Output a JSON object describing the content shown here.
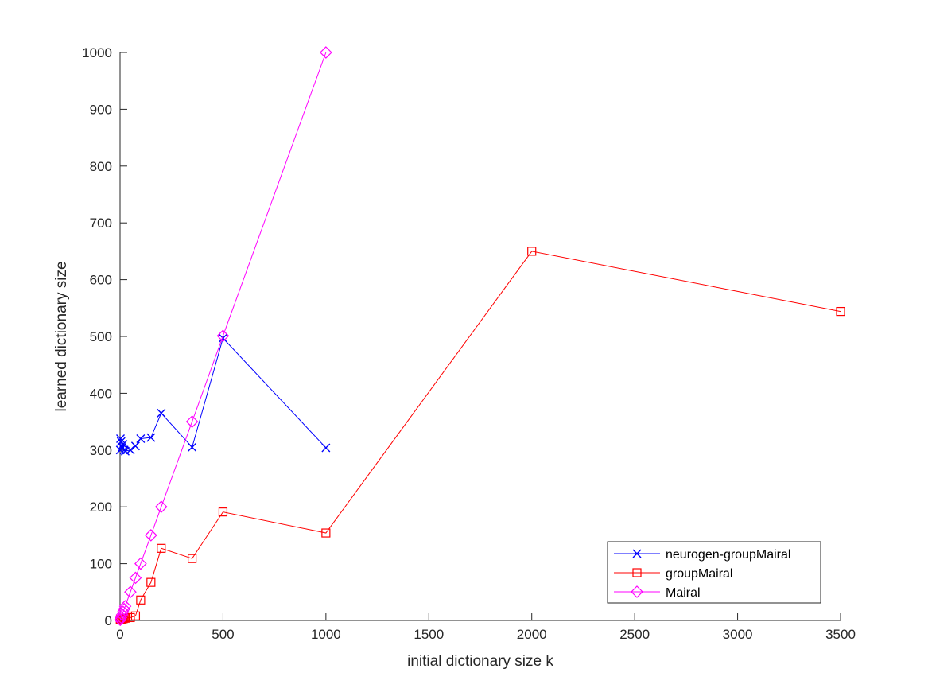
{
  "chart_data": {
    "type": "line",
    "title": "",
    "xlabel": "initial dictionary size k",
    "ylabel": "learned dictionary size",
    "xlim": [
      0,
      3500
    ],
    "ylim": [
      0,
      1000
    ],
    "xticks": [
      0,
      500,
      1000,
      1500,
      2000,
      2500,
      3000,
      3500
    ],
    "yticks": [
      0,
      100,
      200,
      300,
      400,
      500,
      600,
      700,
      800,
      900,
      1000
    ],
    "grid": false,
    "legend_position": "bottom-right",
    "series": [
      {
        "name": "neurogen-groupMairal",
        "color": "#0000ff",
        "marker": "x",
        "x": [
          1,
          2,
          5,
          10,
          15,
          20,
          25,
          50,
          75,
          100,
          150,
          200,
          350,
          500,
          1000
        ],
        "y": [
          300,
          320,
          315,
          305,
          310,
          300,
          298,
          300,
          307,
          320,
          322,
          365,
          305,
          497,
          304
        ]
      },
      {
        "name": "groupMairal",
        "color": "#ff0000",
        "marker": "square",
        "x": [
          1,
          2,
          5,
          10,
          15,
          20,
          25,
          50,
          75,
          100,
          150,
          200,
          350,
          500,
          1000,
          2000,
          3500
        ],
        "y": [
          1,
          1,
          2,
          3,
          3,
          4,
          4,
          5,
          8,
          36,
          67,
          127,
          109,
          191,
          154,
          650,
          544
        ]
      },
      {
        "name": "Mairal",
        "color": "#ff00ff",
        "marker": "diamond",
        "x": [
          1,
          2,
          5,
          10,
          15,
          20,
          25,
          50,
          75,
          100,
          150,
          200,
          350,
          500,
          1000
        ],
        "y": [
          1,
          2,
          5,
          10,
          15,
          20,
          25,
          50,
          75,
          100,
          150,
          200,
          350,
          501,
          1000
        ]
      }
    ]
  }
}
